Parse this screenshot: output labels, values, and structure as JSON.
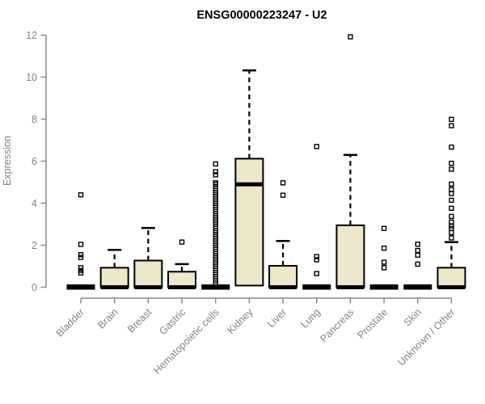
{
  "colors": {
    "background": "#FFFFFF",
    "box_fill": "#EDE7CC",
    "box_border": "#000000",
    "median": "#000000",
    "outlier": "#000000",
    "axis_line": "#8A8A8A",
    "axis_text": "#838383",
    "title_text": "#000000"
  },
  "chart_data": {
    "type": "boxplot",
    "title": "ENSG00000223247 - U2",
    "xlabel": "",
    "ylabel": "Expression",
    "ylim": [
      0,
      12
    ],
    "yticks": [
      0,
      2,
      4,
      6,
      8,
      10,
      12
    ],
    "grid": false,
    "legend": false,
    "categories": [
      "Bladder",
      "Brain",
      "Breast",
      "Gastric",
      "Hematopoietic cells",
      "Kidney",
      "Liver",
      "Lung",
      "Pancreas",
      "Prostate",
      "Skin",
      "Unknown / Other"
    ],
    "series": [
      {
        "category": "Bladder",
        "q1": 0,
        "median": 0,
        "q3": 0,
        "whisker_low": 0,
        "whisker_high": 0,
        "outliers": [
          0.68,
          0.8,
          0.93,
          1.42,
          1.55,
          2.04,
          4.4
        ]
      },
      {
        "category": "Brain",
        "q1": 0,
        "median": 0,
        "q3": 0.93,
        "whisker_low": 0,
        "whisker_high": 1.78,
        "outliers": []
      },
      {
        "category": "Breast",
        "q1": 0,
        "median": 0,
        "q3": 1.27,
        "whisker_low": 0,
        "whisker_high": 2.82,
        "outliers": []
      },
      {
        "category": "Gastric",
        "q1": 0,
        "median": 0,
        "q3": 0.74,
        "whisker_low": 0,
        "whisker_high": 1.1,
        "outliers": [
          2.15
        ]
      },
      {
        "category": "Hematopoietic cells",
        "q1": 0,
        "median": 0,
        "q3": 0,
        "whisker_low": 0,
        "whisker_high": 0,
        "outliers": [
          0.2,
          0.3,
          0.4,
          0.5,
          0.6,
          0.7,
          0.8,
          0.9,
          1.0,
          1.1,
          1.2,
          1.3,
          1.4,
          1.5,
          1.6,
          1.7,
          1.8,
          1.9,
          2.0,
          2.1,
          2.2,
          2.3,
          2.4,
          2.5,
          2.6,
          2.7,
          2.8,
          2.9,
          3.0,
          3.1,
          3.2,
          3.3,
          3.4,
          3.5,
          3.6,
          3.7,
          3.8,
          3.9,
          4.0,
          4.1,
          4.2,
          4.3,
          4.4,
          4.5,
          4.6,
          4.7,
          4.8,
          4.9,
          4.97,
          5.35,
          5.5,
          5.87
        ]
      },
      {
        "category": "Kidney",
        "q1": 0.08,
        "median": 4.9,
        "q3": 6.12,
        "whisker_low": 0.08,
        "whisker_high": 10.32,
        "outliers": []
      },
      {
        "category": "Liver",
        "q1": 0,
        "median": 0,
        "q3": 1.02,
        "whisker_low": 0,
        "whisker_high": 2.2,
        "outliers": [
          4.38,
          4.97
        ]
      },
      {
        "category": "Lung",
        "q1": 0,
        "median": 0,
        "q3": 0,
        "whisker_low": 0,
        "whisker_high": 0,
        "outliers": [
          0.65,
          1.31,
          1.46,
          6.7
        ]
      },
      {
        "category": "Pancreas",
        "q1": 0,
        "median": 0,
        "q3": 2.95,
        "whisker_low": 0,
        "whisker_high": 6.3,
        "outliers": [
          11.92
        ]
      },
      {
        "category": "Prostate",
        "q1": 0,
        "median": 0,
        "q3": 0,
        "whisker_low": 0,
        "whisker_high": 0,
        "outliers": [
          0.93,
          1.19,
          1.86,
          2.8
        ]
      },
      {
        "category": "Skin",
        "q1": 0,
        "median": 0,
        "q3": 0,
        "whisker_low": 0,
        "whisker_high": 0,
        "outliers": [
          1.1,
          1.53,
          1.75,
          2.05
        ]
      },
      {
        "category": "Unknown / Other",
        "q1": 0,
        "median": 0,
        "q3": 0.93,
        "whisker_low": 0,
        "whisker_high": 2.15,
        "outliers": [
          2.35,
          2.6,
          2.8,
          2.92,
          3.1,
          3.37,
          3.76,
          4.14,
          4.46,
          4.65,
          4.91,
          5.62,
          5.9,
          6.67,
          7.69,
          7.99
        ]
      }
    ]
  }
}
